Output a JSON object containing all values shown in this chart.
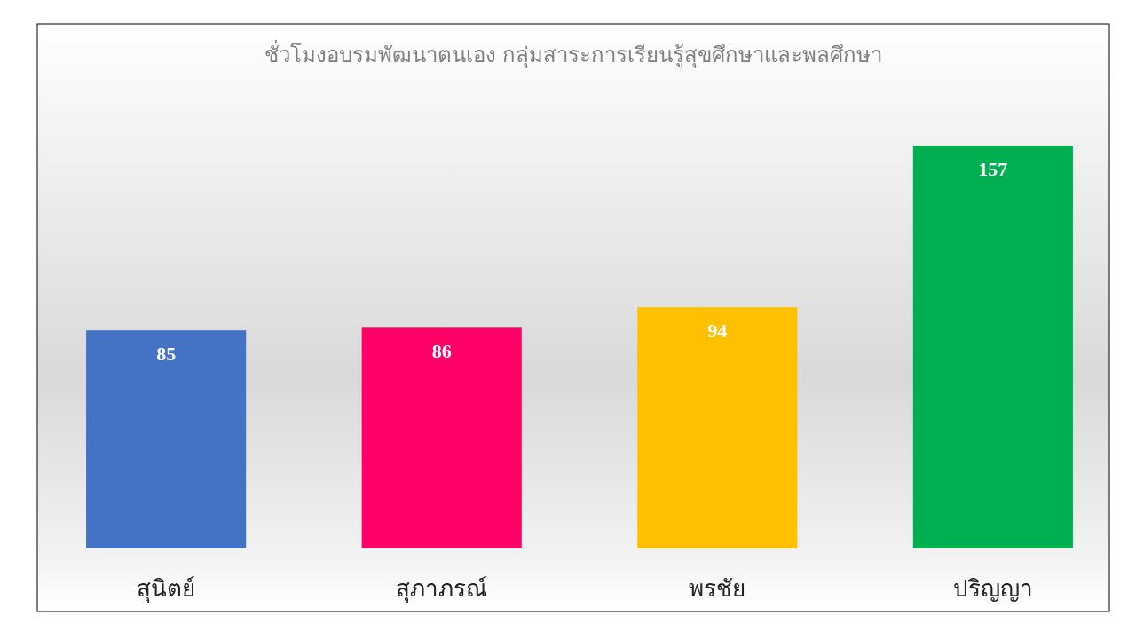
{
  "chart_data": {
    "type": "bar",
    "title": "ชั่วโมงอบรมพัฒนาตนเอง  กลุ่มสาระการเรียนรู้สุขศึกษาและพลศึกษา",
    "categories": [
      "สุนิตย์",
      "สุภาภรณ์",
      "พรชัย",
      "ปริญญา"
    ],
    "values": [
      85,
      86,
      94,
      157
    ],
    "colors": [
      "#4472c4",
      "#ff0066",
      "#ffc000",
      "#00b050"
    ],
    "data_labels": true
  }
}
